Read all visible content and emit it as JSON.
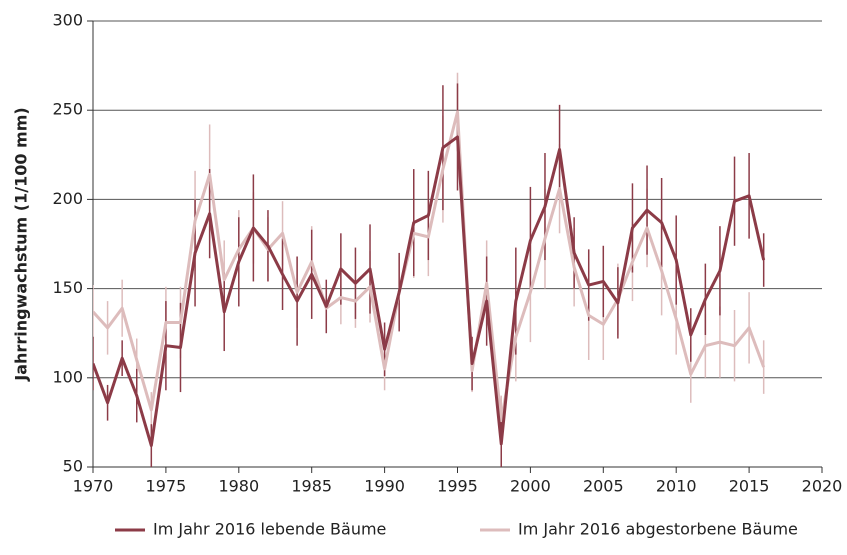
{
  "chart_data": {
    "type": "line",
    "y_label": "Jahrringwachstum (1/100 mm)",
    "x": [
      1970,
      1971,
      1972,
      1973,
      1974,
      1975,
      1976,
      1977,
      1978,
      1979,
      1980,
      1981,
      1982,
      1983,
      1984,
      1985,
      1986,
      1987,
      1988,
      1989,
      1990,
      1991,
      1992,
      1993,
      1994,
      1995,
      1996,
      1997,
      1998,
      1999,
      2000,
      2001,
      2002,
      2003,
      2004,
      2005,
      2006,
      2007,
      2008,
      2009,
      2010,
      2011,
      2012,
      2013,
      2014,
      2015,
      2016
    ],
    "series": [
      {
        "name": "Im Jahr 2016 lebende Bäume",
        "color": "#8c3b47",
        "values": [
          108,
          86,
          111,
          90,
          62,
          118,
          117,
          170,
          192,
          137,
          165,
          184,
          174,
          158,
          143,
          158,
          140,
          161,
          153,
          161,
          116,
          148,
          187,
          191,
          229,
          235,
          108,
          143,
          63,
          143,
          177,
          196,
          228,
          170,
          152,
          154,
          142,
          184,
          194,
          187,
          166,
          124,
          144,
          160,
          199,
          202,
          166
        ],
        "errors": [
          15,
          10,
          10,
          15,
          12,
          25,
          25,
          30,
          25,
          22,
          25,
          30,
          20,
          20,
          25,
          25,
          15,
          20,
          20,
          25,
          15,
          22,
          30,
          25,
          35,
          30,
          15,
          25,
          15,
          30,
          30,
          30,
          25,
          20,
          20,
          20,
          20,
          25,
          25,
          25,
          25,
          15,
          20,
          25,
          25,
          24,
          15
        ]
      },
      {
        "name": "Im Jahr 2016 abgestorbene Bäume",
        "color": "#ddbcbc",
        "values": [
          137,
          128,
          139,
          110,
          82,
          131,
          131,
          188,
          214,
          155,
          172,
          184,
          172,
          181,
          148,
          165,
          139,
          145,
          143,
          151,
          105,
          148,
          181,
          179,
          217,
          249,
          104,
          153,
          76,
          123,
          148,
          178,
          206,
          162,
          135,
          130,
          144,
          165,
          184,
          160,
          133,
          102,
          118,
          120,
          118,
          128,
          106
        ],
        "errors": [
          15,
          15,
          16,
          12,
          10,
          20,
          20,
          28,
          28,
          22,
          22,
          20,
          18,
          18,
          20,
          20,
          12,
          15,
          15,
          20,
          12,
          20,
          25,
          22,
          30,
          22,
          12,
          24,
          14,
          25,
          28,
          28,
          25,
          22,
          25,
          20,
          20,
          22,
          22,
          25,
          20,
          16,
          18,
          20,
          20,
          20,
          15
        ]
      }
    ],
    "xlim": [
      1970,
      2020
    ],
    "xticks": [
      1970,
      1975,
      1980,
      1985,
      1990,
      1995,
      2000,
      2005,
      2010,
      2015,
      2020
    ],
    "ylim": [
      50,
      300
    ],
    "yticks": [
      50,
      100,
      150,
      200,
      250,
      300
    ],
    "grid": true,
    "legend": "bottom"
  }
}
